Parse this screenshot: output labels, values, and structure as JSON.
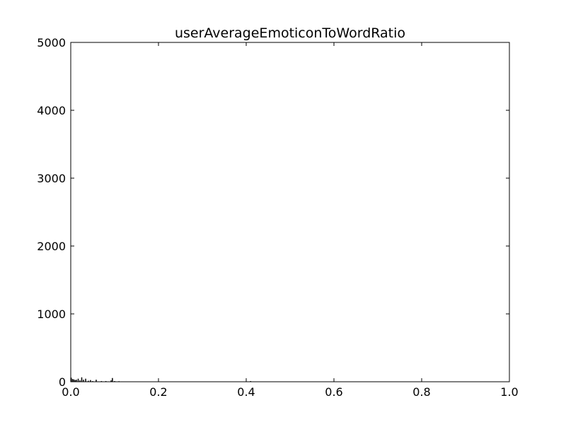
{
  "chart_data": {
    "type": "bar",
    "title": "userAverageEmoticonToWordRatio",
    "xlabel": "",
    "ylabel": "",
    "xlim": [
      0.0,
      1.0
    ],
    "ylim": [
      0,
      5000
    ],
    "x_ticks": [
      "0.0",
      "0.2",
      "0.4",
      "0.6",
      "0.8",
      "1.0"
    ],
    "y_ticks": [
      "0",
      "1000",
      "2000",
      "3000",
      "4000",
      "5000"
    ],
    "grid": false,
    "legend": "none",
    "colors": {
      "bars": "#000000",
      "axes": "#000000",
      "background": "#ffffff"
    },
    "x": [
      0.001,
      0.004,
      0.007,
      0.01,
      0.013,
      0.017,
      0.021,
      0.025,
      0.029,
      0.034,
      0.04,
      0.045,
      0.05,
      0.058,
      0.07,
      0.08,
      0.092,
      0.095,
      0.1,
      0.11,
      0.125,
      0.15,
      0.18,
      0.2,
      0.25,
      0.3,
      0.33,
      0.41,
      0.5
    ],
    "values": [
      60,
      40,
      35,
      25,
      30,
      45,
      20,
      65,
      30,
      45,
      15,
      25,
      10,
      30,
      10,
      10,
      20,
      55,
      10,
      8,
      5,
      5,
      3,
      3,
      2,
      3,
      2,
      10,
      2
    ]
  }
}
